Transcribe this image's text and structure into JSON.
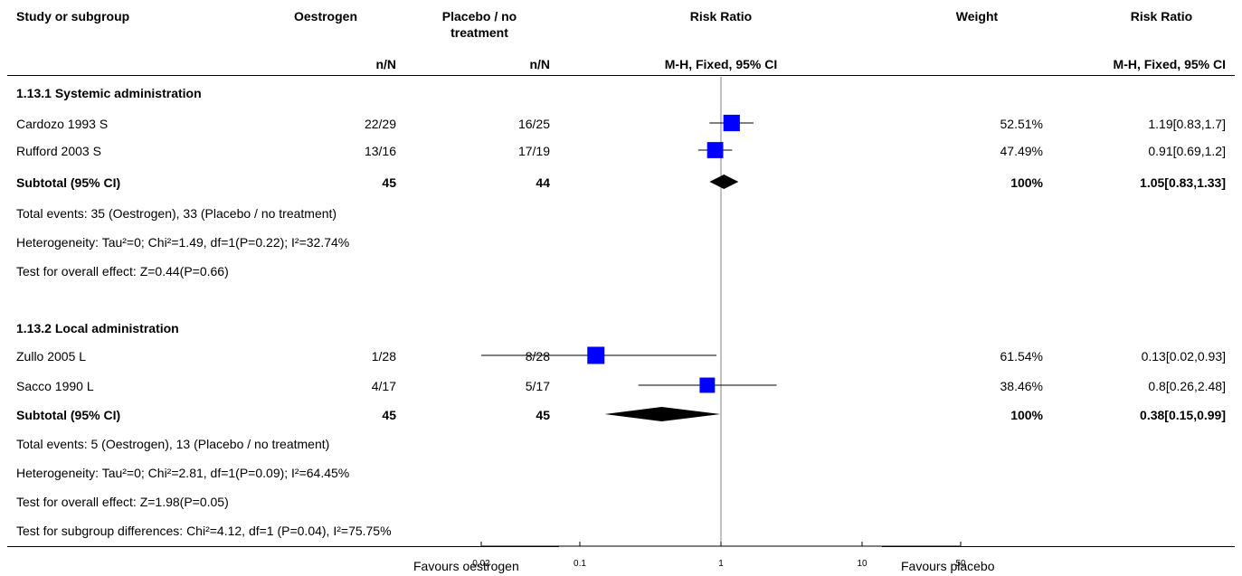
{
  "headers": {
    "study": "Study or subgroup",
    "oestrogen": "Oestrogen",
    "placebo_line1": "Placebo / no",
    "placebo_line2": "treatment",
    "risk_ratio_plot": "Risk Ratio",
    "weight": "Weight",
    "risk_ratio_text": "Risk Ratio",
    "oest_sub": "n/N",
    "plac_sub": "n/N",
    "plot_sub": "M-H, Fixed, 95% CI",
    "rr_sub": "M-H, Fixed, 95% CI"
  },
  "subgroups": [
    {
      "title": "1.13.1 Systemic administration",
      "studies": [
        {
          "name": "Cardozo 1993 S",
          "oest": "22/29",
          "plac": "16/25",
          "weight": "52.51%",
          "rr_text": "1.19[0.83,1.7]"
        },
        {
          "name": "Rufford 2003 S",
          "oest": "13/16",
          "plac": "17/19",
          "weight": "47.49%",
          "rr_text": "0.91[0.69,1.2]"
        }
      ],
      "subtotal": {
        "label": "Subtotal (95% CI)",
        "oest": "45",
        "plac": "44",
        "weight": "100%",
        "rr_text": "1.05[0.83,1.33]"
      },
      "notes": [
        "Total events: 35 (Oestrogen), 33 (Placebo / no treatment)",
        "Heterogeneity: Tau²=0; Chi²=1.49, df=1(P=0.22); I²=32.74%",
        "Test for overall effect: Z=0.44(P=0.66)"
      ]
    },
    {
      "title": "1.13.2 Local administration",
      "studies": [
        {
          "name": "Zullo 2005 L",
          "oest": "1/28",
          "plac": "8/28",
          "weight": "61.54%",
          "rr_text": "0.13[0.02,0.93]"
        },
        {
          "name": "Sacco 1990 L",
          "oest": "4/17",
          "plac": "5/17",
          "weight": "38.46%",
          "rr_text": "0.8[0.26,2.48]"
        }
      ],
      "subtotal": {
        "label": "Subtotal (95% CI)",
        "oest": "45",
        "plac": "45",
        "weight": "100%",
        "rr_text": "0.38[0.15,0.99]"
      },
      "notes": [
        "Total events: 5 (Oestrogen), 13 (Placebo / no treatment)",
        "Heterogeneity: Tau²=0; Chi²=2.81, df=1(P=0.09); I²=64.45%",
        "Test for overall effect: Z=1.98(P=0.05)"
      ]
    }
  ],
  "subgroup_test": "Test for subgroup differences: Chi²=4.12, df=1 (P=0.04), I²=75.75%",
  "footer": {
    "left": "Favours oestrogen",
    "right": "Favours placebo"
  },
  "chart_data": {
    "type": "forest",
    "scale": "log",
    "xlim": [
      0.02,
      50
    ],
    "ticks": [
      0.02,
      0.1,
      1,
      10,
      50
    ],
    "tick_labels": [
      "0.02",
      "0.1",
      "1",
      "10",
      "50"
    ],
    "reference_value": 1,
    "colors": {
      "study_marker": "#0000ff",
      "diamond": "#000000"
    },
    "studies": [
      {
        "name": "Cardozo 1993 S",
        "rr": 1.19,
        "lo": 0.83,
        "hi": 1.7,
        "weight": 52.51
      },
      {
        "name": "Rufford 2003 S",
        "rr": 0.91,
        "lo": 0.69,
        "hi": 1.2,
        "weight": 47.49
      },
      {
        "name": "Zullo 2005 L",
        "rr": 0.13,
        "lo": 0.02,
        "hi": 0.93,
        "weight": 61.54
      },
      {
        "name": "Sacco 1990 L",
        "rr": 0.8,
        "lo": 0.26,
        "hi": 2.48,
        "weight": 38.46
      }
    ],
    "subtotals": [
      {
        "label": "Subtotal (95% CI)",
        "rr": 1.05,
        "lo": 0.83,
        "hi": 1.33
      },
      {
        "label": "Subtotal (95% CI)",
        "rr": 0.38,
        "lo": 0.15,
        "hi": 0.99
      }
    ]
  }
}
